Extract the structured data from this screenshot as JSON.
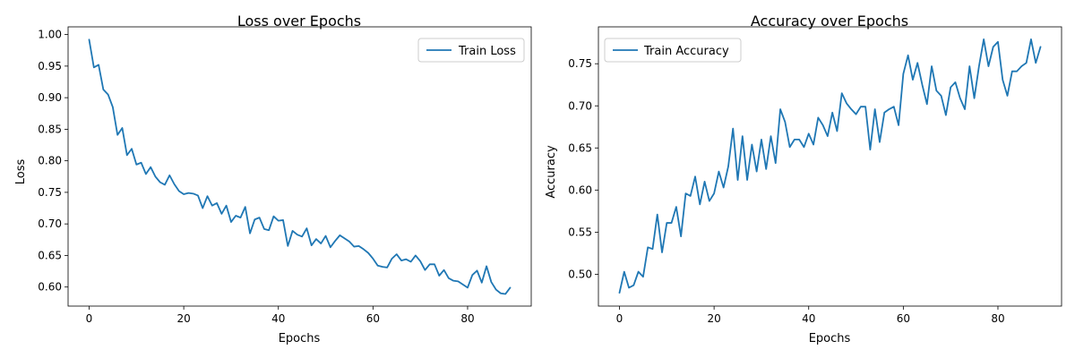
{
  "chart_data": [
    {
      "type": "line",
      "title": "Loss over Epochs",
      "xlabel": "Epochs",
      "ylabel": "Loss",
      "xlim": [
        -4.45,
        93.45
      ],
      "ylim": [
        0.5698,
        1.0122
      ],
      "xticks": [
        0,
        20,
        40,
        60,
        80
      ],
      "yticks": [
        0.6,
        0.65,
        0.7,
        0.75,
        0.8,
        0.85,
        0.9,
        0.95,
        1.0
      ],
      "ytick_labels": [
        "0.60",
        "0.65",
        "0.70",
        "0.75",
        "0.80",
        "0.85",
        "0.90",
        "0.95",
        "1.00"
      ],
      "grid": false,
      "legend_position": "top-right",
      "series": [
        {
          "name": "Train Loss",
          "color": "#1f77b4",
          "x": [
            0,
            1,
            2,
            3,
            4,
            5,
            6,
            7,
            8,
            9,
            10,
            11,
            12,
            13,
            14,
            15,
            16,
            17,
            18,
            19,
            20,
            21,
            22,
            23,
            24,
            25,
            26,
            27,
            28,
            29,
            30,
            31,
            32,
            33,
            34,
            35,
            36,
            37,
            38,
            39,
            40,
            41,
            42,
            43,
            44,
            45,
            46,
            47,
            48,
            49,
            50,
            51,
            52,
            53,
            54,
            55,
            56,
            57,
            58,
            59,
            60,
            61,
            62,
            63,
            64,
            65,
            66,
            67,
            68,
            69,
            70,
            71,
            72,
            73,
            74,
            75,
            76,
            77,
            78,
            79,
            80,
            81,
            82,
            83,
            84,
            85,
            86,
            87,
            88,
            89
          ],
          "values": [
            0.992,
            0.948,
            0.952,
            0.913,
            0.905,
            0.885,
            0.841,
            0.852,
            0.809,
            0.819,
            0.794,
            0.797,
            0.779,
            0.79,
            0.775,
            0.766,
            0.762,
            0.777,
            0.763,
            0.752,
            0.747,
            0.749,
            0.748,
            0.745,
            0.725,
            0.744,
            0.729,
            0.733,
            0.716,
            0.729,
            0.703,
            0.713,
            0.71,
            0.727,
            0.685,
            0.707,
            0.71,
            0.692,
            0.69,
            0.712,
            0.705,
            0.706,
            0.665,
            0.689,
            0.683,
            0.68,
            0.693,
            0.666,
            0.676,
            0.669,
            0.681,
            0.663,
            0.673,
            0.682,
            0.677,
            0.672,
            0.664,
            0.665,
            0.66,
            0.654,
            0.645,
            0.634,
            0.632,
            0.631,
            0.645,
            0.652,
            0.642,
            0.644,
            0.64,
            0.65,
            0.641,
            0.627,
            0.636,
            0.636,
            0.618,
            0.627,
            0.614,
            0.61,
            0.609,
            0.604,
            0.599,
            0.619,
            0.626,
            0.607,
            0.633,
            0.608,
            0.596,
            0.59,
            0.589,
            0.599
          ]
        }
      ]
    },
    {
      "type": "line",
      "title": "Accuracy over Epochs",
      "xlabel": "Epochs",
      "ylabel": "Accuracy",
      "xlim": [
        -4.45,
        93.45
      ],
      "ylim": [
        0.4622,
        0.7938
      ],
      "xticks": [
        0,
        20,
        40,
        60,
        80
      ],
      "yticks": [
        0.5,
        0.55,
        0.6,
        0.65,
        0.7,
        0.75
      ],
      "ytick_labels": [
        "0.50",
        "0.55",
        "0.60",
        "0.65",
        "0.70",
        "0.75"
      ],
      "grid": false,
      "legend_position": "top-left",
      "series": [
        {
          "name": "Train Accuracy",
          "color": "#1f77b4",
          "x": [
            0,
            1,
            2,
            3,
            4,
            5,
            6,
            7,
            8,
            9,
            10,
            11,
            12,
            13,
            14,
            15,
            16,
            17,
            18,
            19,
            20,
            21,
            22,
            23,
            24,
            25,
            26,
            27,
            28,
            29,
            30,
            31,
            32,
            33,
            34,
            35,
            36,
            37,
            38,
            39,
            40,
            41,
            42,
            43,
            44,
            45,
            46,
            47,
            48,
            49,
            50,
            51,
            52,
            53,
            54,
            55,
            56,
            57,
            58,
            59,
            60,
            61,
            62,
            63,
            64,
            65,
            66,
            67,
            68,
            69,
            70,
            71,
            72,
            73,
            74,
            75,
            76,
            77,
            78,
            79,
            80,
            81,
            82,
            83,
            84,
            85,
            86,
            87,
            88,
            89
          ],
          "values": [
            0.478,
            0.503,
            0.484,
            0.487,
            0.503,
            0.497,
            0.532,
            0.53,
            0.571,
            0.526,
            0.561,
            0.561,
            0.58,
            0.545,
            0.596,
            0.593,
            0.616,
            0.583,
            0.61,
            0.587,
            0.596,
            0.622,
            0.603,
            0.628,
            0.673,
            0.612,
            0.664,
            0.612,
            0.654,
            0.622,
            0.66,
            0.625,
            0.664,
            0.632,
            0.696,
            0.681,
            0.651,
            0.66,
            0.66,
            0.651,
            0.667,
            0.654,
            0.686,
            0.677,
            0.664,
            0.692,
            0.67,
            0.715,
            0.703,
            0.696,
            0.69,
            0.699,
            0.699,
            0.648,
            0.696,
            0.657,
            0.692,
            0.696,
            0.699,
            0.677,
            0.738,
            0.76,
            0.731,
            0.751,
            0.725,
            0.702,
            0.747,
            0.718,
            0.712,
            0.689,
            0.722,
            0.728,
            0.709,
            0.696,
            0.747,
            0.709,
            0.747,
            0.779,
            0.747,
            0.77,
            0.776,
            0.731,
            0.712,
            0.741,
            0.741,
            0.747,
            0.751,
            0.779,
            0.751,
            0.77
          ]
        }
      ]
    }
  ]
}
